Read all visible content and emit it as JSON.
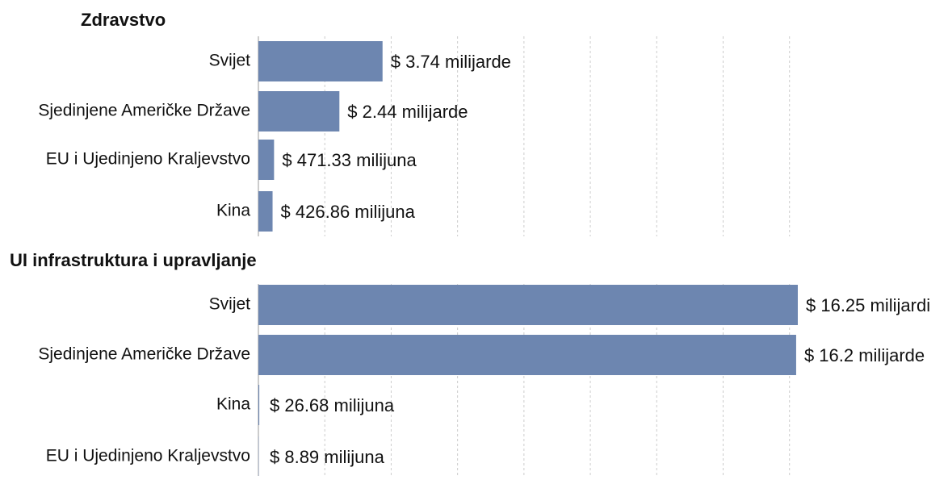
{
  "chart_data": [
    {
      "type": "bar",
      "orientation": "horizontal",
      "title": "Zdravstvo",
      "categories": [
        "Svijet",
        "Sjedinjene Američke Države",
        "EU i Ujedinjeno Kraljevstvo",
        "Kina"
      ],
      "values": [
        3740000000,
        2440000000,
        471330000,
        426860000
      ],
      "value_labels": [
        "$ 3.74 milijarde",
        "$ 2.44 milijarde",
        "$ 471.33 milijuna",
        "$ 426.86 milijuna"
      ],
      "color": "#6d86b0",
      "xlim": [
        0,
        16250000000
      ],
      "xticks": [
        0,
        2000000000,
        4000000000,
        6000000000,
        8000000000,
        10000000000,
        12000000000,
        14000000000,
        16000000000
      ],
      "grid": true
    },
    {
      "type": "bar",
      "orientation": "horizontal",
      "title": "UI infrastruktura i upravljanje",
      "categories": [
        "Svijet",
        "Sjedinjene Američke Države",
        "Kina",
        "EU i Ujedinjeno Kraljevstvo"
      ],
      "values": [
        16250000000,
        16200000000,
        26680000,
        8890000
      ],
      "value_labels": [
        "$ 16.25 milijardi",
        "$ 16.2 milijarde",
        "$ 26.68 milijuna",
        "$ 8.89 milijuna"
      ],
      "color": "#6d86b0",
      "xlim": [
        0,
        16250000000
      ],
      "xticks": [
        0,
        2000000000,
        4000000000,
        6000000000,
        8000000000,
        10000000000,
        12000000000,
        14000000000,
        16000000000
      ],
      "grid": true
    }
  ]
}
